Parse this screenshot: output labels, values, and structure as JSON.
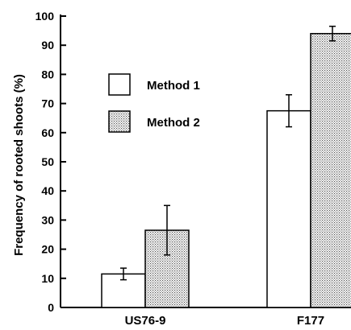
{
  "chart_data": {
    "type": "bar",
    "categories": [
      "US76-9",
      "F177"
    ],
    "series": [
      {
        "name": "Method 1",
        "values": [
          11.5,
          67.5
        ],
        "errors": [
          2,
          5.5
        ],
        "fill": "plain"
      },
      {
        "name": "Method 2",
        "values": [
          26.5,
          94
        ],
        "errors": [
          8.5,
          2.5
        ],
        "fill": "dotted"
      }
    ],
    "ylabel": "Frequency of rooted shoots (%)",
    "xlabel": "",
    "ylim": [
      0,
      100
    ],
    "yticks": [
      0,
      10,
      20,
      30,
      40,
      50,
      60,
      70,
      80,
      90,
      100
    ],
    "grid": false,
    "legend_position": "upper-left",
    "colors": {
      "method1_fill": "#ffffff",
      "method2_fill": "#d9d9d9",
      "stroke": "#000000"
    }
  }
}
